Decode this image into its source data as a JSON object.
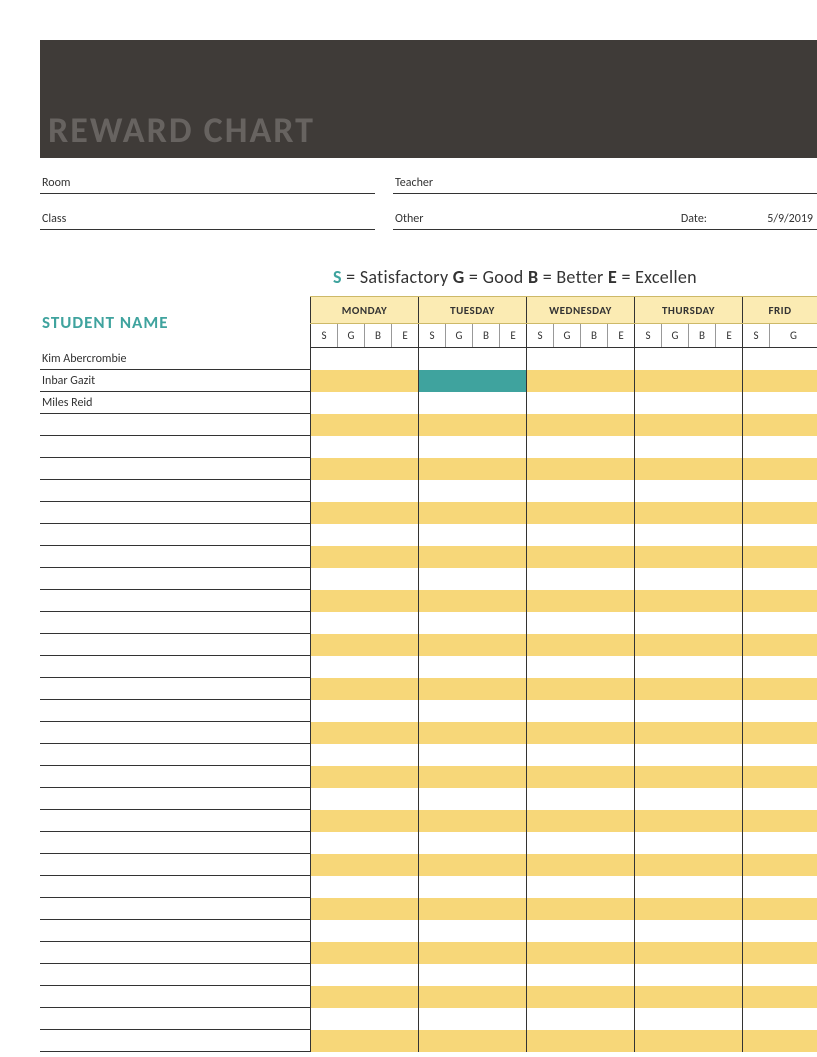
{
  "header": {
    "title": "REWARD CHART",
    "bar_color": "#3f3b38",
    "title_color": "#676360"
  },
  "info": {
    "room_label": "Room",
    "class_label": "Class",
    "teacher_label": "Teacher",
    "other_label": "Other",
    "date_label": "Date:",
    "date_value": "5/9/2019"
  },
  "legend": {
    "s_code": "S",
    "s_text": " = Satisfactory  ",
    "g_code": "G",
    "g_text": " = Good  ",
    "b_code": "B",
    "b_text": " = Better  ",
    "e_code": "E",
    "e_text": " = Excellen"
  },
  "student_name_header": "STUDENT NAME",
  "accent_color": "#3fa39e",
  "stripe_color": "#f7d779",
  "day_header_bg": "#fbebb3",
  "days": [
    "MONDAY",
    "TUESDAY",
    "WEDNESDAY",
    "THURSDAY",
    "FRID"
  ],
  "day_widths": [
    108,
    108,
    108,
    108,
    75
  ],
  "sub_codes": [
    "S",
    "G",
    "B",
    "E"
  ],
  "sub_width": 27,
  "last_day_sub_count": 2,
  "students": [
    "Kim Abercrombie",
    "Inbar Gazit",
    "Miles Reid"
  ],
  "total_rows": 32,
  "highlights": [
    {
      "row": 1,
      "day": 1,
      "cols": [
        0,
        1,
        2,
        3
      ]
    }
  ]
}
